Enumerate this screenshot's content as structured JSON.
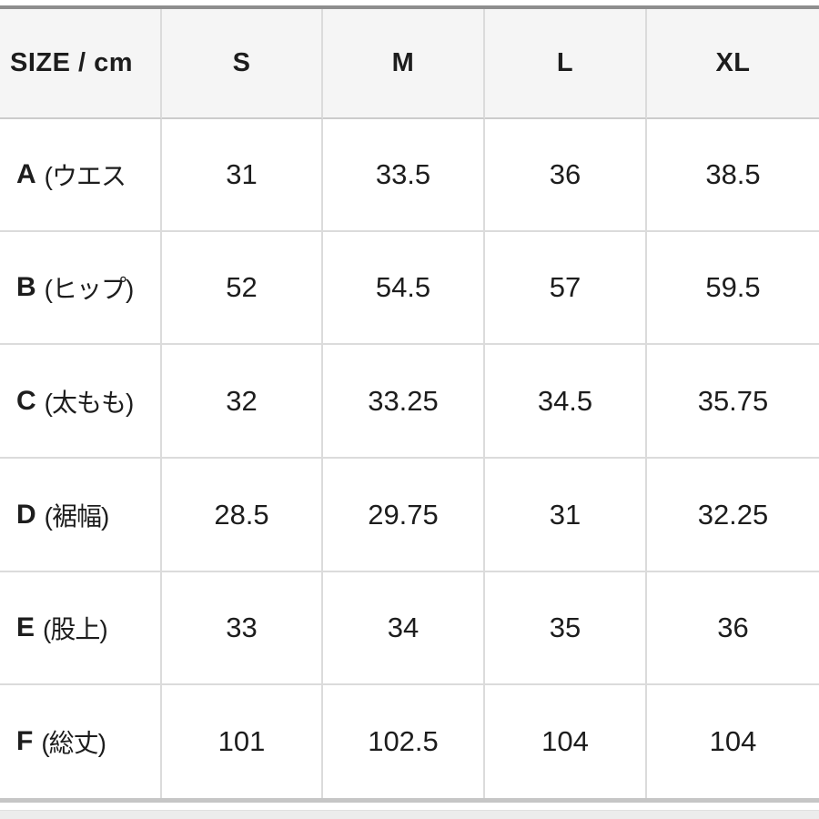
{
  "table": {
    "header": {
      "label": "SIZE / cm",
      "cols": [
        "S",
        "M",
        "L",
        "XL"
      ]
    },
    "rows": [
      {
        "letter": "A",
        "desc": "(ウエス",
        "values": [
          "31",
          "33.5",
          "36",
          "38.5"
        ]
      },
      {
        "letter": "B",
        "desc": "(ヒップ)",
        "values": [
          "52",
          "54.5",
          "57",
          "59.5"
        ]
      },
      {
        "letter": "C",
        "desc": "(太もも)",
        "values": [
          "32",
          "33.25",
          "34.5",
          "35.75"
        ]
      },
      {
        "letter": "D",
        "desc": "(裾幅)",
        "values": [
          "28.5",
          "29.75",
          "31",
          "32.25"
        ]
      },
      {
        "letter": "E",
        "desc": "(股上)",
        "values": [
          "33",
          "34",
          "35",
          "36"
        ]
      },
      {
        "letter": "F",
        "desc": "(総丈)",
        "values": [
          "101",
          "102.5",
          "104",
          "104"
        ]
      }
    ],
    "colors": {
      "header_bg": "#f5f5f5",
      "grid_line": "#dbdbdb",
      "top_rule": "#8e8e8e",
      "bottom_rule": "#c6c6c6",
      "text": "#1d1d1d"
    }
  }
}
